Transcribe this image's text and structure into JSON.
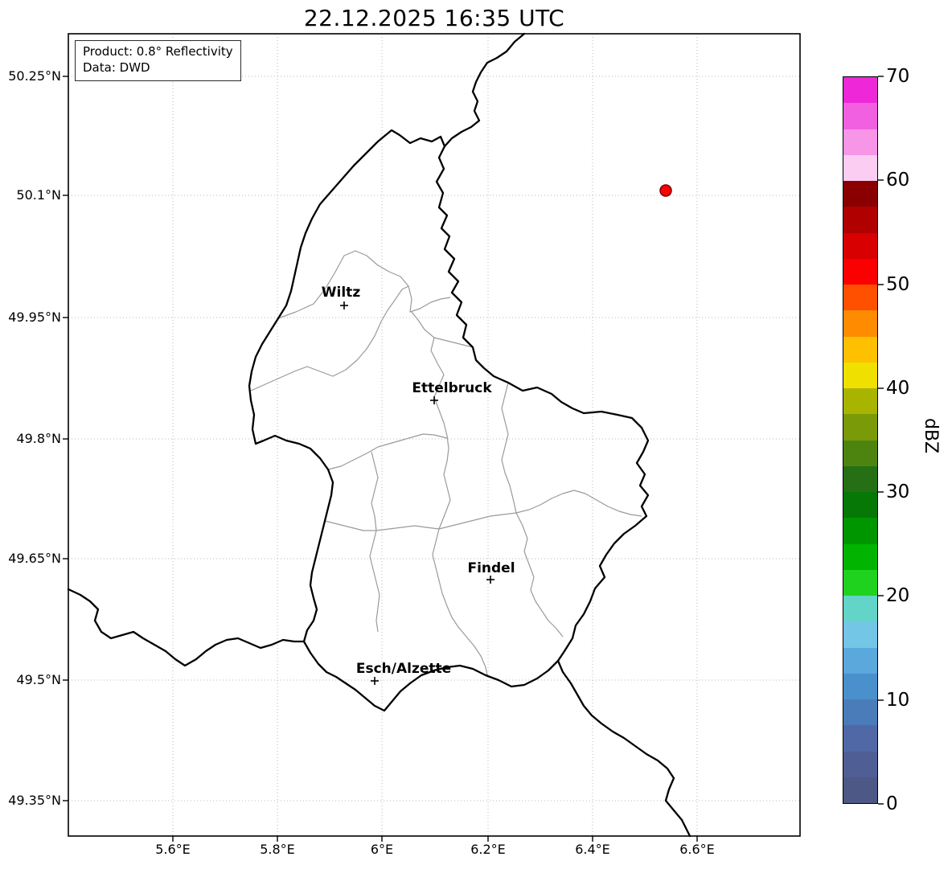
{
  "title": "22.12.2025 16:35 UTC",
  "info_box": {
    "line1": "Product: 0.8° Reflectivity",
    "line2": "Data: DWD"
  },
  "map": {
    "x_ticks": [
      "5.6°E",
      "5.8°E",
      "6°E",
      "6.2°E",
      "6.4°E",
      "6.6°E"
    ],
    "y_ticks": [
      "50.25°N",
      "50.1°N",
      "49.95°N",
      "49.8°N",
      "49.65°N",
      "49.5°N",
      "49.35°N"
    ],
    "cities": [
      {
        "name": "Wiltz"
      },
      {
        "name": "Ettelbruck"
      },
      {
        "name": "Findel"
      },
      {
        "name": "Esch/Alzette"
      }
    ],
    "radar_echo": {
      "color": "#ff0000",
      "edge_color": "#7a0000"
    }
  },
  "colorbar": {
    "label": "dBZ",
    "ticks": [
      "70",
      "60",
      "50",
      "40",
      "30",
      "20",
      "10",
      "0"
    ],
    "value_range": [
      0,
      70
    ],
    "colors": [
      "#ee28d8",
      "#f160e0",
      "#f795e6",
      "#fbcdf2",
      "#8a0000",
      "#b00000",
      "#d80000",
      "#fa0000",
      "#ff5000",
      "#ff8c00",
      "#ffc000",
      "#f0e000",
      "#a8b400",
      "#7a9a08",
      "#4d8410",
      "#257014",
      "#067806",
      "#009600",
      "#00b400",
      "#1ed21e",
      "#62d5c8",
      "#74c6e6",
      "#5aa8dc",
      "#4a90cc",
      "#4a7cba",
      "#5069a6",
      "#4f5e94",
      "#4d5887"
    ]
  }
}
